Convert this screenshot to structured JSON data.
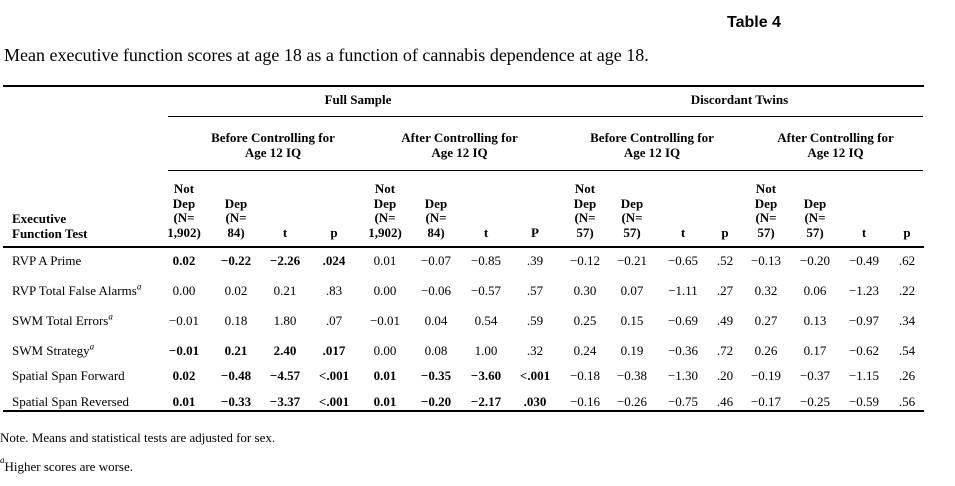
{
  "table_label": "Table 4",
  "caption": "Mean executive function scores at age 18 as a function of cannabis dependence at age 18.",
  "groups": {
    "full_sample": "Full Sample",
    "discordant_twins": "Discordant Twins"
  },
  "subgroups": {
    "fs_before": "Before Controlling for\nAge 12 IQ",
    "fs_after": "After Controlling for\nAge 12 IQ",
    "dt_before": "Before Controlling for\nAge 12 IQ",
    "dt_after": "After Controlling for\nAge 12 IQ"
  },
  "column_headers": {
    "test": "Executive\nFunction Test",
    "fs_before": [
      "Not\nDep\n(N=\n1,902)",
      "Dep\n(N=\n84)",
      "t",
      "p"
    ],
    "fs_after": [
      "Not\nDep\n(N=\n1,902)",
      "Dep\n(N=\n84)",
      "t",
      "P"
    ],
    "dt_before": [
      "Not\nDep\n(N=\n57)",
      "Dep\n(N=\n57)",
      "t",
      "p"
    ],
    "dt_after": [
      "Not\nDep\n(N=\n57)",
      "Dep\n(N=\n57)",
      "t",
      "p"
    ]
  },
  "footnote_marker": "a",
  "rows": [
    {
      "label": "RVP A Prime",
      "sup": "",
      "fs_before": [
        "0.02",
        "−0.22",
        "−2.26",
        ".024"
      ],
      "fs_before_bold": true,
      "fs_after": [
        "0.01",
        "−0.07",
        "−0.85",
        ".39"
      ],
      "fs_after_bold": false,
      "dt_before": [
        "−0.12",
        "−0.21",
        "−0.65",
        ".52"
      ],
      "dt_after": [
        "−0.13",
        "−0.20",
        "−0.49",
        ".62"
      ]
    },
    {
      "label": "RVP Total False Alarms",
      "sup": "a",
      "fs_before": [
        "0.00",
        "0.02",
        "0.21",
        ".83"
      ],
      "fs_before_bold": false,
      "fs_after": [
        "0.00",
        "−0.06",
        "−0.57",
        ".57"
      ],
      "fs_after_bold": false,
      "dt_before": [
        "0.30",
        "0.07",
        "−1.11",
        ".27"
      ],
      "dt_after": [
        "0.32",
        "0.06",
        "−1.23",
        ".22"
      ]
    },
    {
      "label": "SWM Total Errors",
      "sup": "a",
      "fs_before": [
        "−0.01",
        "0.18",
        "1.80",
        ".07"
      ],
      "fs_before_bold": false,
      "fs_after": [
        "−0.01",
        "0.04",
        "0.54",
        ".59"
      ],
      "fs_after_bold": false,
      "dt_before": [
        "0.25",
        "0.15",
        "−0.69",
        ".49"
      ],
      "dt_after": [
        "0.27",
        "0.13",
        "−0.97",
        ".34"
      ]
    },
    {
      "label": "SWM Strategy",
      "sup": "a",
      "fs_before": [
        "−0.01",
        "0.21",
        "2.40",
        ".017"
      ],
      "fs_before_bold": true,
      "fs_after": [
        "0.00",
        "0.08",
        "1.00",
        ".32"
      ],
      "fs_after_bold": false,
      "dt_before": [
        "0.24",
        "0.19",
        "−0.36",
        ".72"
      ],
      "dt_after": [
        "0.26",
        "0.17",
        "−0.62",
        ".54"
      ]
    },
    {
      "label": "Spatial Span Forward",
      "sup": "",
      "fs_before": [
        "0.02",
        "−0.48",
        "−4.57",
        "<.001"
      ],
      "fs_before_bold": true,
      "fs_after": [
        "0.01",
        "−0.35",
        "−3.60",
        "<.001"
      ],
      "fs_after_bold": true,
      "dt_before": [
        "−0.18",
        "−0.38",
        "−1.30",
        ".20"
      ],
      "dt_after": [
        "−0.19",
        "−0.37",
        "−1.15",
        ".26"
      ]
    },
    {
      "label": "Spatial Span Reversed",
      "sup": "",
      "fs_before": [
        "0.01",
        "−0.33",
        "−3.37",
        "<.001"
      ],
      "fs_before_bold": true,
      "fs_after": [
        "0.01",
        "−0.20",
        "−2.17",
        ".030"
      ],
      "fs_after_bold": true,
      "dt_before": [
        "−0.16",
        "−0.26",
        "−0.75",
        ".46"
      ],
      "dt_after": [
        "−0.17",
        "−0.25",
        "−0.59",
        ".56"
      ]
    }
  ],
  "notes": {
    "note": "Note. Means and statistical tests are adjusted for sex.",
    "sup_marker": "a",
    "higher_worse": "Higher scores are worse."
  }
}
